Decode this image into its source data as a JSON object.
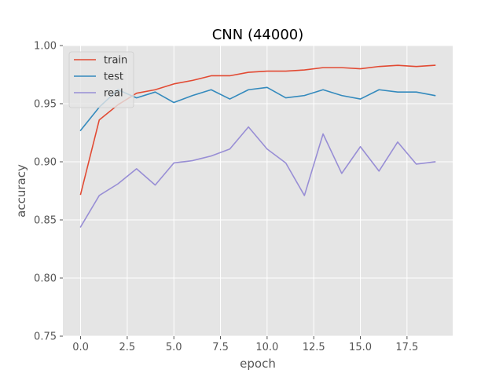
{
  "chart_data": {
    "type": "line",
    "title": "CNN (44000)",
    "xlabel": "epoch",
    "ylabel": "accuracy",
    "x": [
      0,
      1,
      2,
      3,
      4,
      5,
      6,
      7,
      8,
      9,
      10,
      11,
      12,
      13,
      14,
      15,
      16,
      17,
      18,
      19
    ],
    "xlim": [
      -0.95,
      19.95
    ],
    "ylim": [
      0.75,
      1.0
    ],
    "xticks": [
      0,
      2.5,
      5,
      7.5,
      10,
      12.5,
      15,
      17.5
    ],
    "xtick_labels": [
      "0.0",
      "2.5",
      "5.0",
      "7.5",
      "10.0",
      "12.5",
      "15.0",
      "17.5"
    ],
    "yticks": [
      0.75,
      0.8,
      0.85,
      0.9,
      0.95,
      1.0
    ],
    "ytick_labels": [
      "0.75",
      "0.80",
      "0.85",
      "0.90",
      "0.95",
      "1.00"
    ],
    "grid": true,
    "legend_position": "top-left",
    "style": "ggplot",
    "colors": {
      "panel": "#e5e5e5",
      "grid": "#ffffff",
      "train": "#e24a33",
      "test": "#348abd",
      "real": "#988ed5"
    },
    "series": [
      {
        "name": "train",
        "color": "#e24a33",
        "values": [
          0.872,
          0.936,
          0.949,
          0.959,
          0.962,
          0.967,
          0.97,
          0.974,
          0.974,
          0.977,
          0.978,
          0.978,
          0.979,
          0.981,
          0.981,
          0.98,
          0.982,
          0.983,
          0.982,
          0.983
        ]
      },
      {
        "name": "test",
        "color": "#348abd",
        "values": [
          0.927,
          0.947,
          0.962,
          0.955,
          0.96,
          0.951,
          0.957,
          0.962,
          0.954,
          0.962,
          0.964,
          0.955,
          0.957,
          0.962,
          0.957,
          0.954,
          0.962,
          0.96,
          0.96,
          0.957
        ]
      },
      {
        "name": "real",
        "color": "#988ed5",
        "values": [
          0.844,
          0.871,
          0.881,
          0.894,
          0.88,
          0.899,
          0.901,
          0.905,
          0.911,
          0.93,
          0.911,
          0.899,
          0.871,
          0.924,
          0.89,
          0.913,
          0.892,
          0.917,
          0.898,
          0.9
        ]
      }
    ]
  }
}
